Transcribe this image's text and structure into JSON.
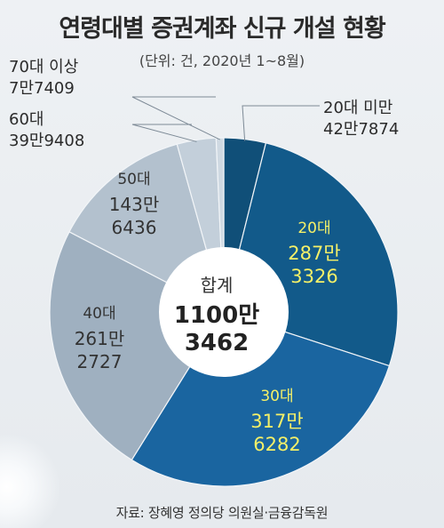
{
  "title": "연령대별 증권계좌 신규 개설 현황",
  "subtitle": "(단위: 건, 2020년 1~8월)",
  "source": "자료: 장혜영 정의당 의원실·금융감독원",
  "chart_data": {
    "type": "pie",
    "center_label": {
      "title": "합계",
      "line1": "1100만",
      "line2": "3462"
    },
    "slices": [
      {
        "name": "20대 미만",
        "value": 427874,
        "label_line1": "42만7874",
        "color": "#104f78"
      },
      {
        "name": "20대",
        "value": 2873326,
        "label_line1": "287만",
        "label_line2": "3326",
        "color": "#125a8a"
      },
      {
        "name": "30대",
        "value": 3176282,
        "label_line1": "317만",
        "label_line2": "6282",
        "color": "#1a65a0"
      },
      {
        "name": "40대",
        "value": 2612727,
        "label_line1": "261만",
        "label_line2": "2727",
        "color": "#9fb0c0"
      },
      {
        "name": "50대",
        "value": 1436436,
        "label_line1": "143만",
        "label_line2": "6436",
        "color": "#b3c1ce"
      },
      {
        "name": "60대",
        "value": 399408,
        "label_line1": "39만9408",
        "color": "#c3cfda"
      },
      {
        "name": "70대 이상",
        "value": 77409,
        "label_line1": "7만7409",
        "color": "#cfd9e2"
      }
    ]
  }
}
